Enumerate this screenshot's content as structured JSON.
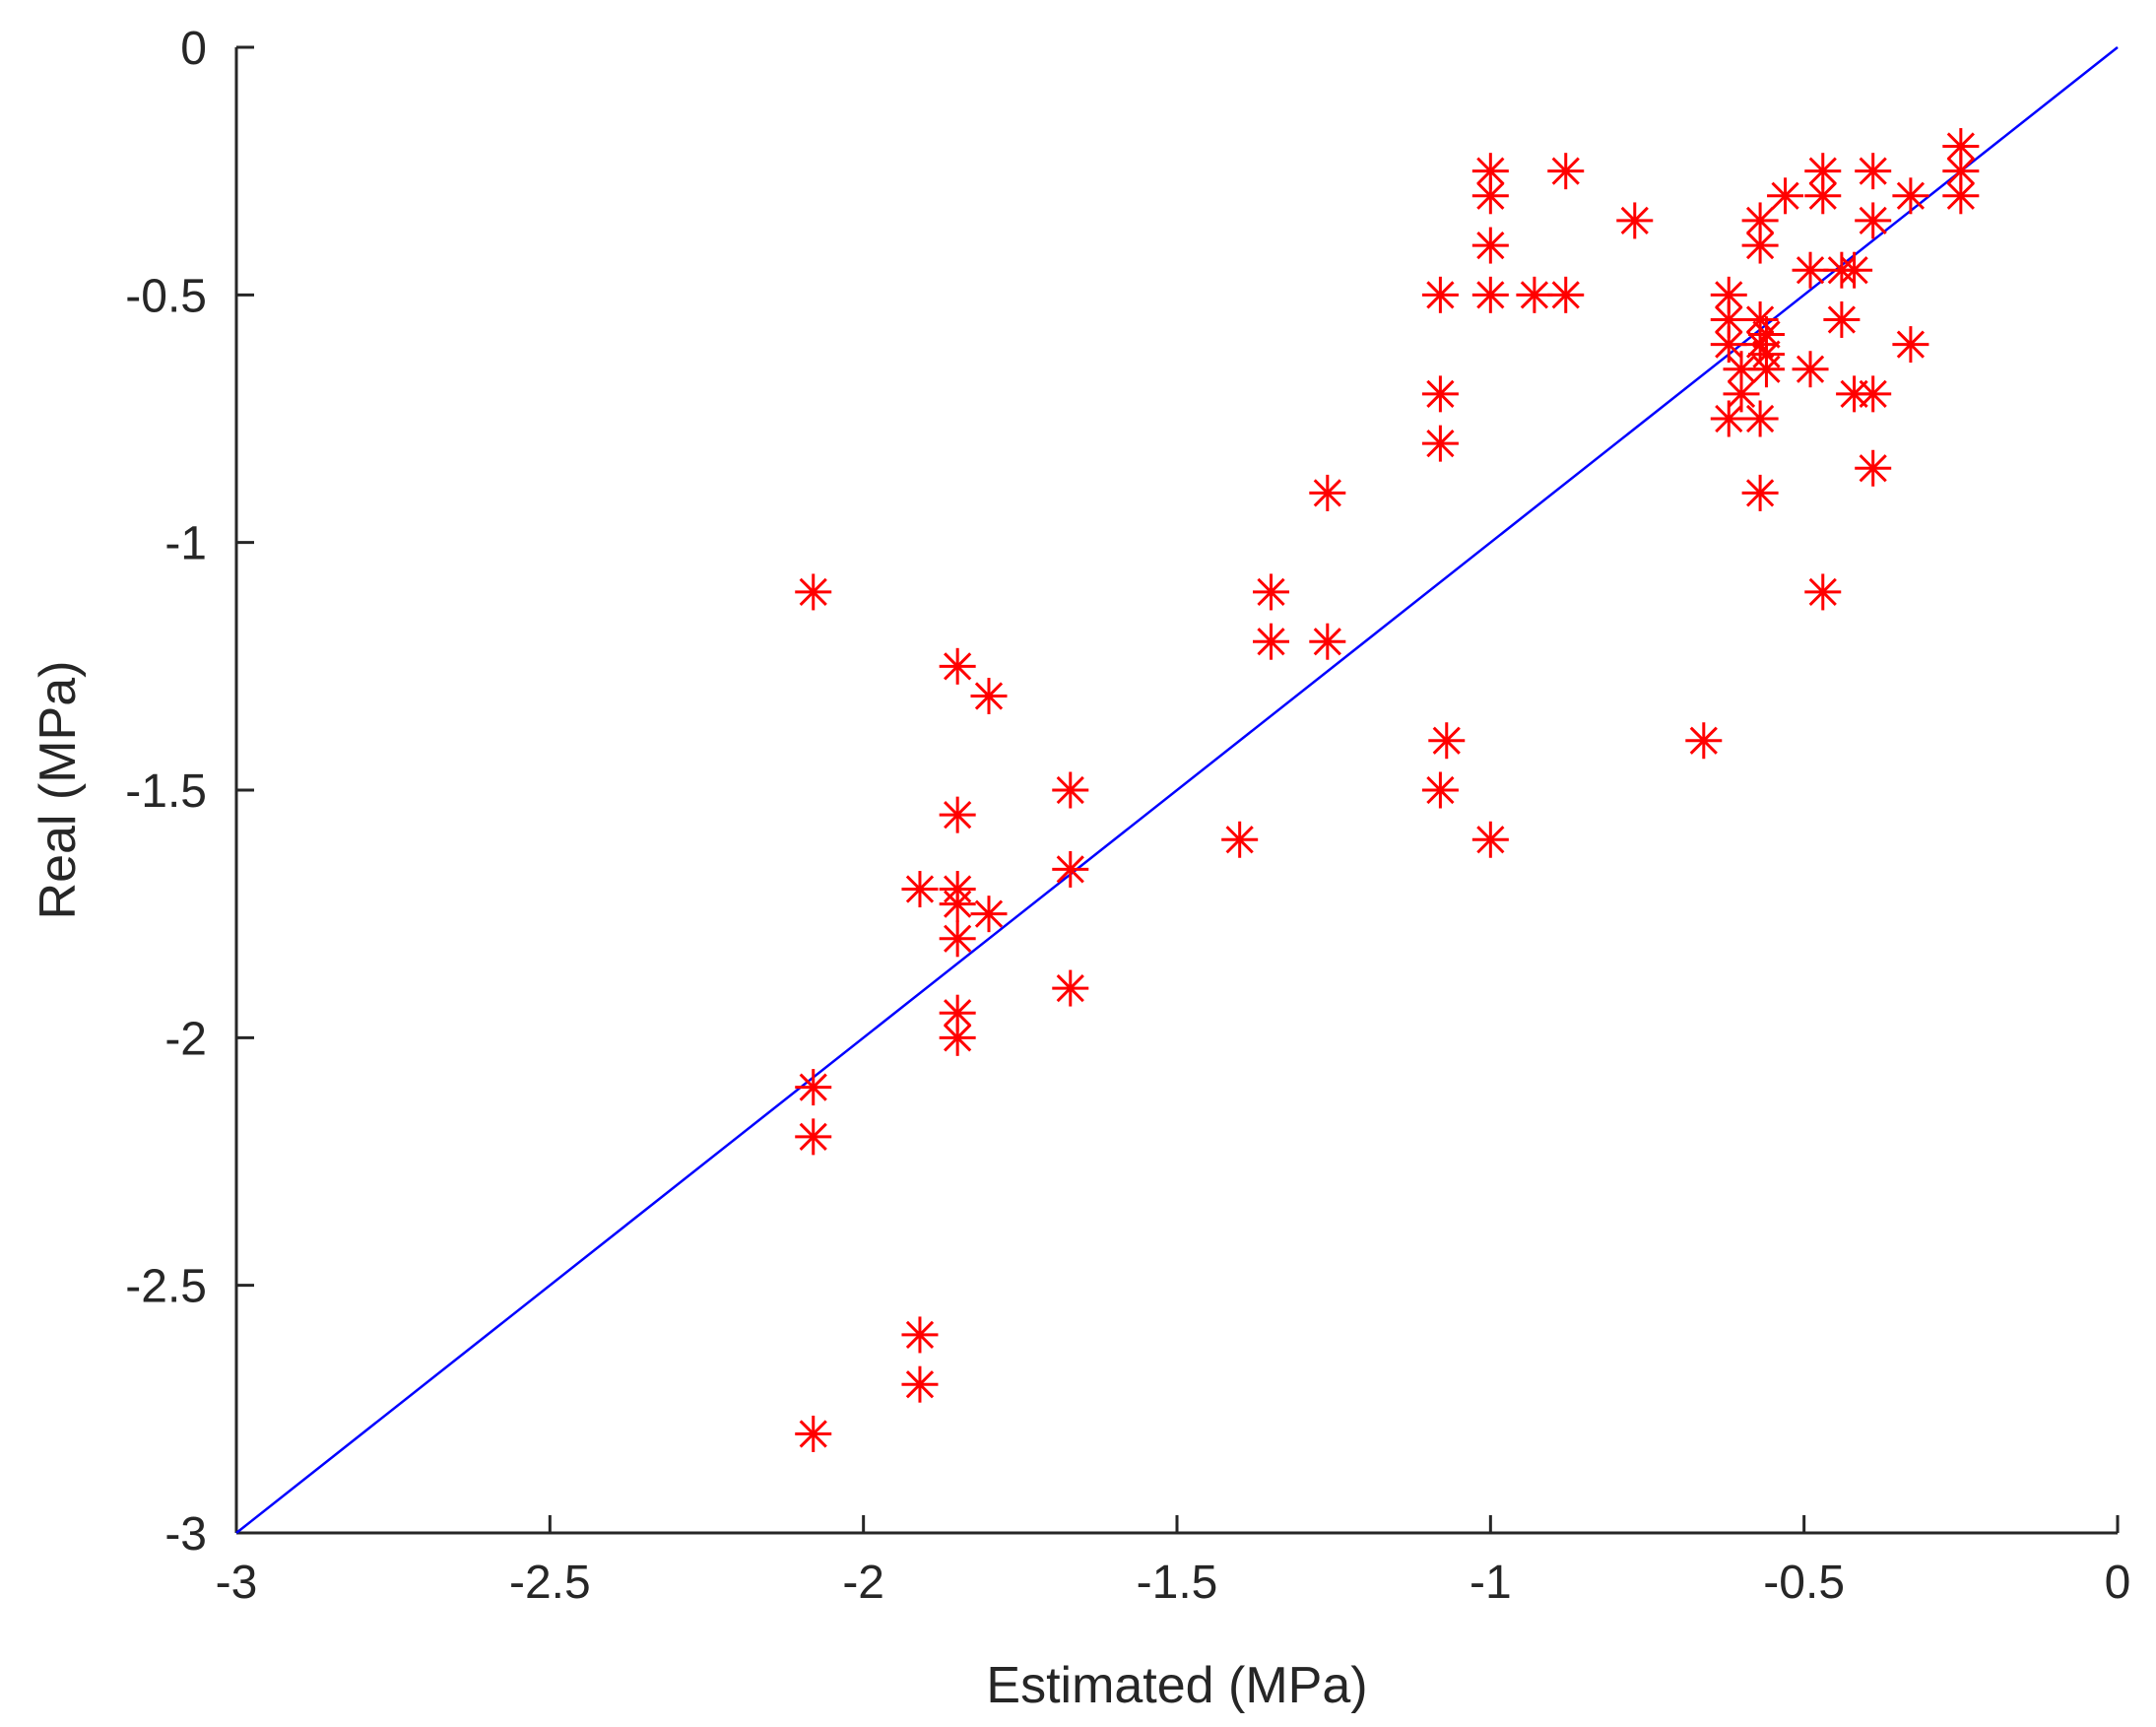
{
  "chart_data": {
    "type": "scatter",
    "xlabel": "Estimated (MPa)",
    "ylabel": "Real (MPa)",
    "xlim": [
      -3,
      0
    ],
    "ylim": [
      -3,
      0
    ],
    "xticks": [
      -3,
      -2.5,
      -2,
      -1.5,
      -1,
      -0.5,
      0
    ],
    "yticks": [
      -3,
      -2.5,
      -2,
      -1.5,
      -1,
      -0.5,
      0
    ],
    "xtick_labels": [
      "-3",
      "-2.5",
      "-2",
      "-1.5",
      "-1",
      "-0.5",
      "0"
    ],
    "ytick_labels": [
      "-3",
      "-2.5",
      "-2",
      "-1.5",
      "-1",
      "-0.5",
      "0"
    ],
    "grid": false,
    "marker": "asterisk",
    "marker_color": "#ff0000",
    "line_color": "#0000ff",
    "reference_line": {
      "x": [
        -3,
        0
      ],
      "y": [
        -3,
        0
      ]
    },
    "points": [
      {
        "x": -2.08,
        "y": -1.1
      },
      {
        "x": -2.08,
        "y": -2.1
      },
      {
        "x": -2.08,
        "y": -2.2
      },
      {
        "x": -2.08,
        "y": -2.8
      },
      {
        "x": -1.91,
        "y": -1.7
      },
      {
        "x": -1.91,
        "y": -2.6
      },
      {
        "x": -1.91,
        "y": -2.7
      },
      {
        "x": -1.85,
        "y": -1.25
      },
      {
        "x": -1.85,
        "y": -1.55
      },
      {
        "x": -1.85,
        "y": -1.7
      },
      {
        "x": -1.85,
        "y": -1.73
      },
      {
        "x": -1.85,
        "y": -1.8
      },
      {
        "x": -1.85,
        "y": -1.95
      },
      {
        "x": -1.85,
        "y": -2.0
      },
      {
        "x": -1.8,
        "y": -1.31
      },
      {
        "x": -1.8,
        "y": -1.75
      },
      {
        "x": -1.67,
        "y": -1.5
      },
      {
        "x": -1.67,
        "y": -1.66
      },
      {
        "x": -1.67,
        "y": -1.9
      },
      {
        "x": -1.4,
        "y": -1.6
      },
      {
        "x": -1.35,
        "y": -1.1
      },
      {
        "x": -1.35,
        "y": -1.2
      },
      {
        "x": -1.26,
        "y": -0.9
      },
      {
        "x": -1.26,
        "y": -1.2
      },
      {
        "x": -1.08,
        "y": -0.5
      },
      {
        "x": -1.08,
        "y": -0.7
      },
      {
        "x": -1.08,
        "y": -0.8
      },
      {
        "x": -1.08,
        "y": -1.5
      },
      {
        "x": -1.07,
        "y": -1.4
      },
      {
        "x": -1.0,
        "y": -0.25
      },
      {
        "x": -1.0,
        "y": -0.3
      },
      {
        "x": -1.0,
        "y": -0.4
      },
      {
        "x": -1.0,
        "y": -0.5
      },
      {
        "x": -1.0,
        "y": -1.6
      },
      {
        "x": -0.93,
        "y": -0.5
      },
      {
        "x": -0.88,
        "y": -0.25
      },
      {
        "x": -0.88,
        "y": -0.5
      },
      {
        "x": -0.77,
        "y": -0.35
      },
      {
        "x": -0.66,
        "y": -1.4
      },
      {
        "x": -0.62,
        "y": -0.5
      },
      {
        "x": -0.62,
        "y": -0.55
      },
      {
        "x": -0.62,
        "y": -0.6
      },
      {
        "x": -0.62,
        "y": -0.75
      },
      {
        "x": -0.6,
        "y": -0.65
      },
      {
        "x": -0.6,
        "y": -0.7
      },
      {
        "x": -0.57,
        "y": -0.35
      },
      {
        "x": -0.57,
        "y": -0.4
      },
      {
        "x": -0.57,
        "y": -0.55
      },
      {
        "x": -0.57,
        "y": -0.6
      },
      {
        "x": -0.57,
        "y": -0.75
      },
      {
        "x": -0.57,
        "y": -0.9
      },
      {
        "x": -0.56,
        "y": -0.58
      },
      {
        "x": -0.56,
        "y": -0.62
      },
      {
        "x": -0.56,
        "y": -0.65
      },
      {
        "x": -0.53,
        "y": -0.3
      },
      {
        "x": -0.49,
        "y": -0.45
      },
      {
        "x": -0.49,
        "y": -0.65
      },
      {
        "x": -0.47,
        "y": -0.25
      },
      {
        "x": -0.47,
        "y": -0.3
      },
      {
        "x": -0.47,
        "y": -1.1
      },
      {
        "x": -0.44,
        "y": -0.45
      },
      {
        "x": -0.44,
        "y": -0.55
      },
      {
        "x": -0.42,
        "y": -0.45
      },
      {
        "x": -0.42,
        "y": -0.7
      },
      {
        "x": -0.39,
        "y": -0.25
      },
      {
        "x": -0.39,
        "y": -0.35
      },
      {
        "x": -0.39,
        "y": -0.7
      },
      {
        "x": -0.39,
        "y": -0.85
      },
      {
        "x": -0.33,
        "y": -0.3
      },
      {
        "x": -0.33,
        "y": -0.6
      },
      {
        "x": -0.25,
        "y": -0.2
      },
      {
        "x": -0.25,
        "y": -0.25
      },
      {
        "x": -0.25,
        "y": -0.3
      }
    ]
  }
}
